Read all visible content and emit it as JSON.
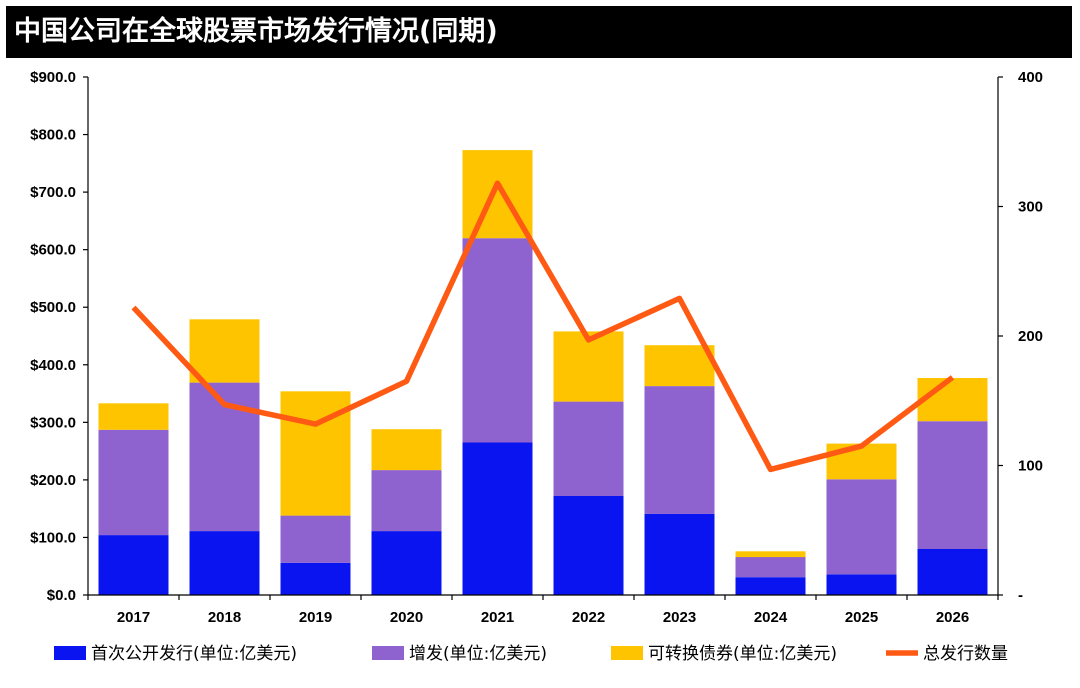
{
  "title": "中国公司在全球股票市场发行情况(同期)",
  "chart_data": {
    "type": "bar",
    "subtype": "stacked bar with line on secondary axis",
    "categories": [
      "2017",
      "2018",
      "2019",
      "2020",
      "2021",
      "2022",
      "2023",
      "2024",
      "2025",
      "2026"
    ],
    "series": [
      {
        "name": "首次公开发行(单位:亿美元)",
        "type": "bar",
        "axis": "left",
        "color": "#0A14F0",
        "values": [
          104,
          111,
          56,
          111,
          265,
          172,
          141,
          31,
          36,
          80
        ]
      },
      {
        "name": "增发(单位:亿美元)",
        "type": "bar",
        "axis": "left",
        "color": "#8E63CF",
        "values": [
          183,
          258,
          82,
          106,
          355,
          164,
          222,
          35,
          165,
          222
        ]
      },
      {
        "name": "可转换债券(单位:亿美元)",
        "type": "bar",
        "axis": "left",
        "color": "#FFC400",
        "values": [
          46,
          110,
          216,
          71,
          153,
          122,
          71,
          10,
          62,
          75
        ]
      },
      {
        "name": "总发行数量",
        "type": "line",
        "axis": "right",
        "color": "#FF5A14",
        "values": [
          222,
          147,
          132,
          165,
          318,
          197,
          229,
          97,
          115,
          168
        ]
      }
    ],
    "left_axis": {
      "ylim": [
        0,
        900
      ],
      "ticks": [
        0,
        100,
        200,
        300,
        400,
        500,
        600,
        700,
        800,
        900
      ],
      "tick_labels": [
        "$0.0",
        "$100.0",
        "$200.0",
        "$300.0",
        "$400.0",
        "$500.0",
        "$600.0",
        "$700.0",
        "$800.0",
        "$900.0"
      ]
    },
    "right_axis": {
      "ylim": [
        0,
        400
      ],
      "ticks": [
        0,
        100,
        200,
        300,
        400
      ],
      "tick_labels": [
        "-",
        "100",
        "200",
        "300",
        "400"
      ]
    },
    "grid": false,
    "legend_position": "bottom"
  }
}
